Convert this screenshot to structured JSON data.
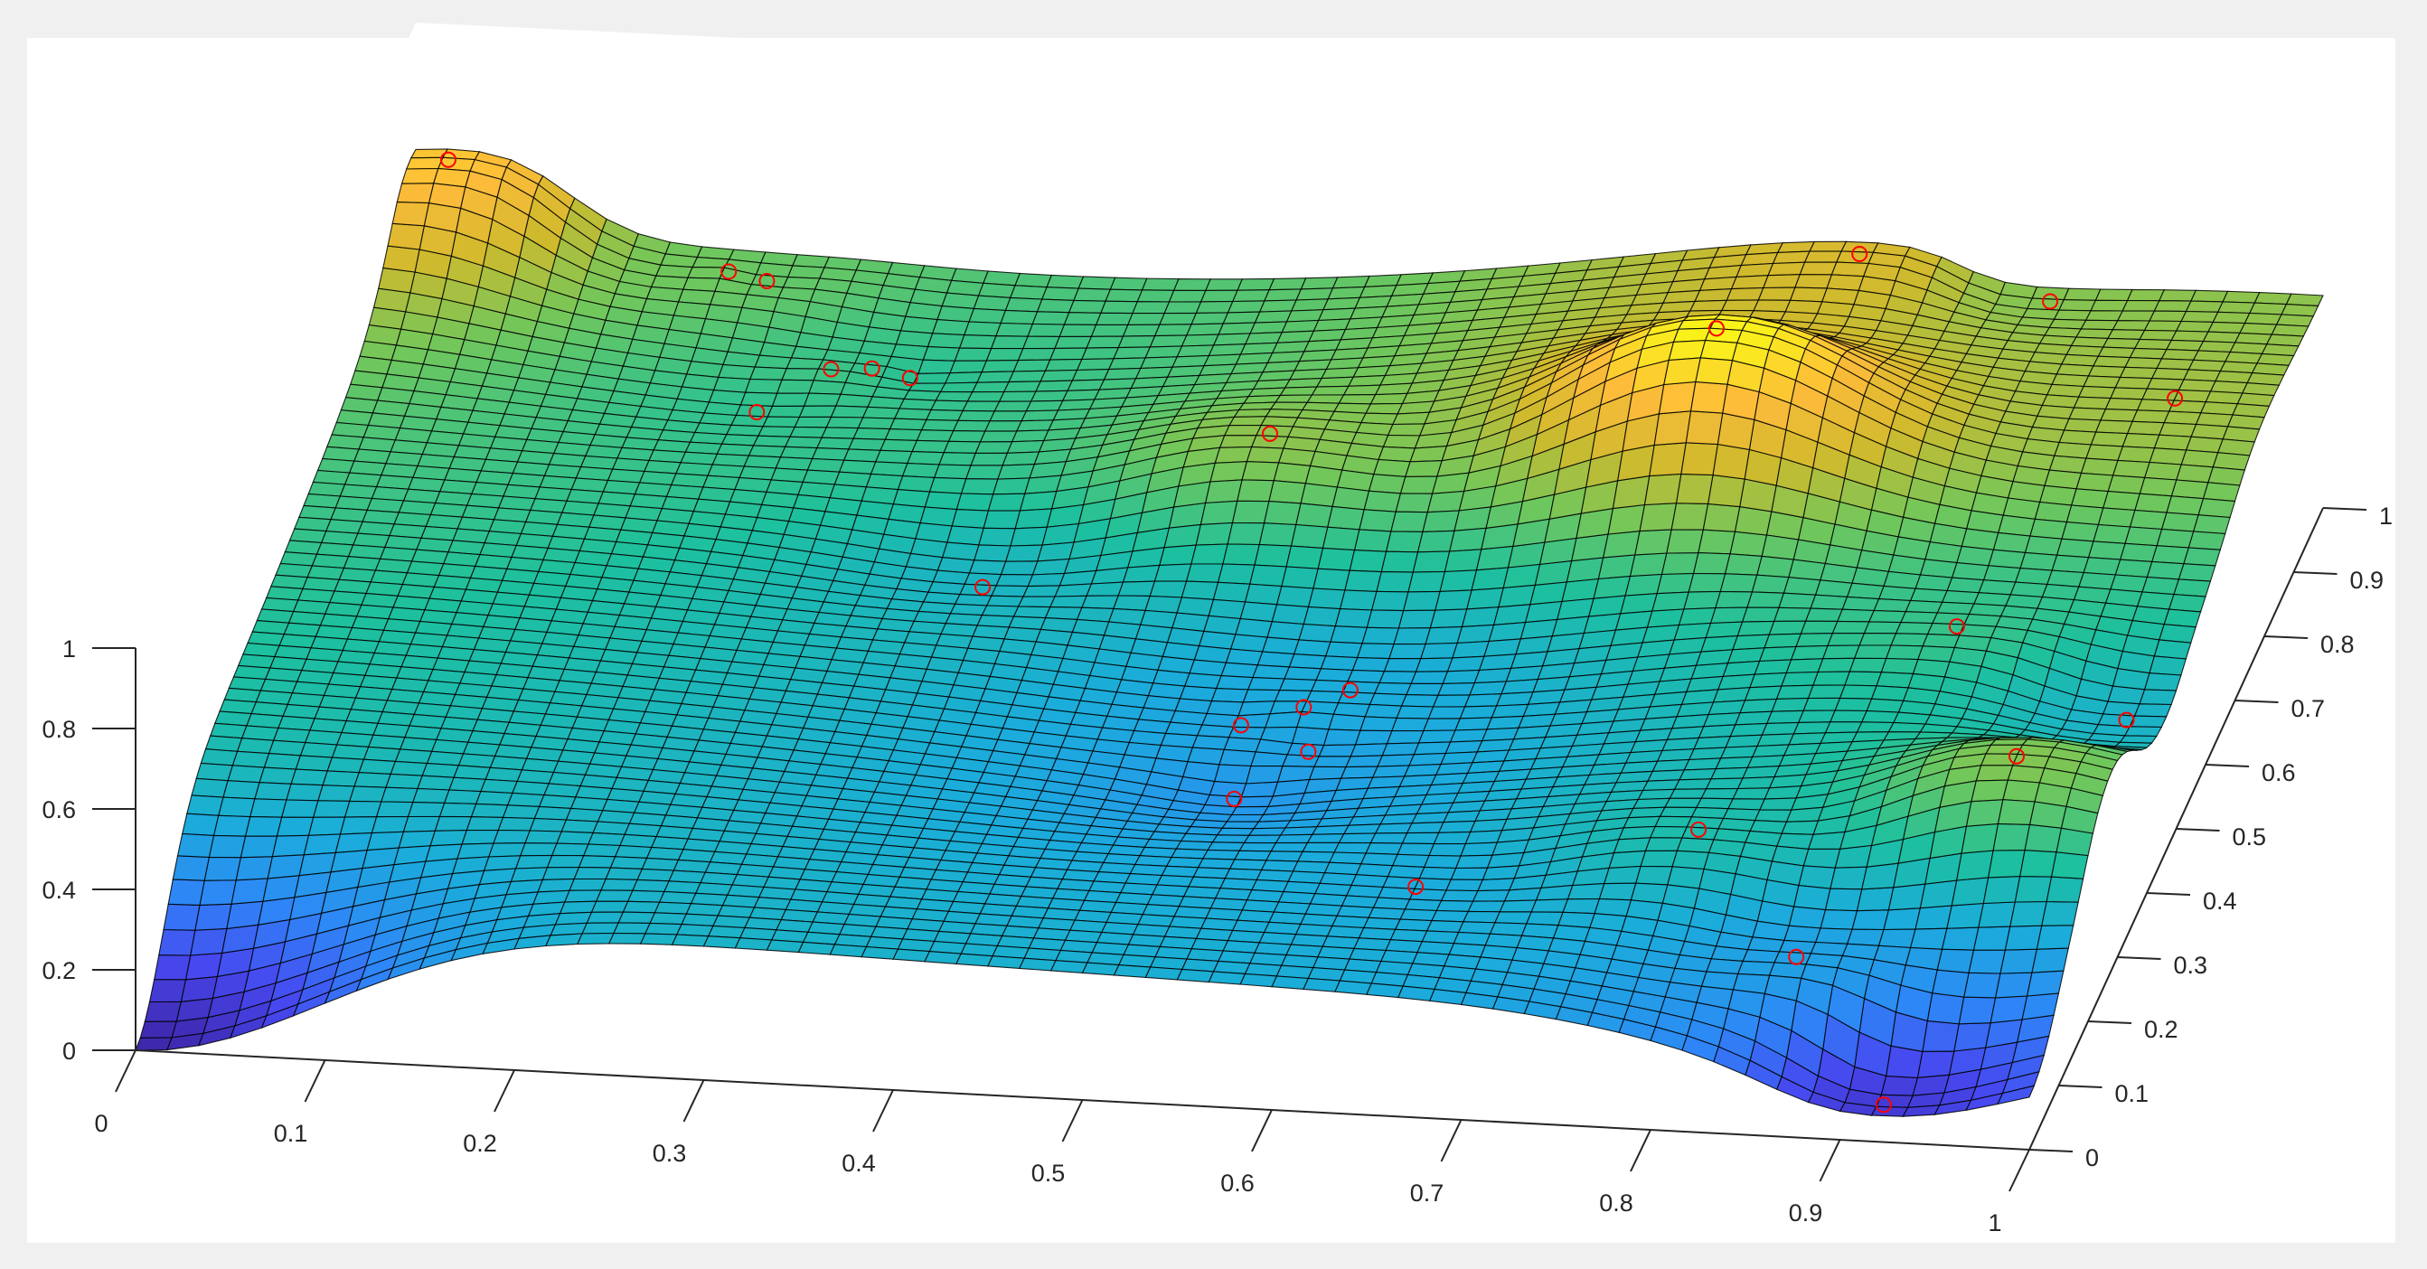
{
  "chart_data": {
    "type": "surface",
    "title": "",
    "xlabel": "",
    "ylabel": "",
    "zlabel": "",
    "xlim": [
      0,
      1
    ],
    "ylim": [
      0,
      1
    ],
    "zlim": [
      0,
      1
    ],
    "x_ticks": [
      "0",
      "0.1",
      "0.2",
      "0.3",
      "0.4",
      "0.5",
      "0.6",
      "0.7",
      "0.8",
      "0.9",
      "1"
    ],
    "y_ticks": [
      "0",
      "0.1",
      "0.2",
      "0.3",
      "0.4",
      "0.5",
      "0.6",
      "0.7",
      "0.8",
      "0.9",
      "1"
    ],
    "z_ticks": [
      "0",
      "0.2",
      "0.4",
      "0.6",
      "0.8",
      "1"
    ],
    "grid": false,
    "colormap": "parula",
    "colormap_stops": [
      "#3e26a8",
      "#4748f0",
      "#2e87f7",
      "#1bacdb",
      "#1dc09e",
      "#71c75b",
      "#d0ba2d",
      "#fdbb3a",
      "#f9fb15"
    ],
    "marker_color": "#ff0000",
    "background_color": "#f0f0f0",
    "axes_color": "#ffffff",
    "sample_points": [
      {
        "x": 0.02,
        "y": 0.98,
        "z": 0.72
      },
      {
        "x": 0.17,
        "y": 0.96,
        "z": 0.5
      },
      {
        "x": 0.19,
        "y": 0.96,
        "z": 0.48
      },
      {
        "x": 0.21,
        "y": 0.79,
        "z": 0.42
      },
      {
        "x": 0.24,
        "y": 0.85,
        "z": 0.44
      },
      {
        "x": 0.26,
        "y": 0.86,
        "z": 0.43
      },
      {
        "x": 0.28,
        "y": 0.86,
        "z": 0.41
      },
      {
        "x": 0.36,
        "y": 0.58,
        "z": 0.34
      },
      {
        "x": 0.49,
        "y": 0.72,
        "z": 0.53
      },
      {
        "x": 0.52,
        "y": 0.42,
        "z": 0.28
      },
      {
        "x": 0.53,
        "y": 0.33,
        "z": 0.24
      },
      {
        "x": 0.55,
        "y": 0.44,
        "z": 0.3
      },
      {
        "x": 0.56,
        "y": 0.39,
        "z": 0.27
      },
      {
        "x": 0.57,
        "y": 0.47,
        "z": 0.3
      },
      {
        "x": 0.65,
        "y": 0.17,
        "z": 0.3
      },
      {
        "x": 0.72,
        "y": 0.75,
        "z": 0.79
      },
      {
        "x": 0.76,
        "y": 0.98,
        "z": 0.62
      },
      {
        "x": 0.79,
        "y": 0.23,
        "z": 0.38
      },
      {
        "x": 0.86,
        "y": 0.98,
        "z": 0.52
      },
      {
        "x": 0.86,
        "y": 0.11,
        "z": 0.27
      },
      {
        "x": 0.88,
        "y": 0.53,
        "z": 0.43
      },
      {
        "x": 0.95,
        "y": 0.82,
        "z": 0.55
      },
      {
        "x": 0.92,
        "y": 0.02,
        "z": 0.06
      },
      {
        "x": 0.95,
        "y": 0.28,
        "z": 0.52
      },
      {
        "x": 0.98,
        "y": 0.46,
        "z": 0.33
      }
    ]
  }
}
